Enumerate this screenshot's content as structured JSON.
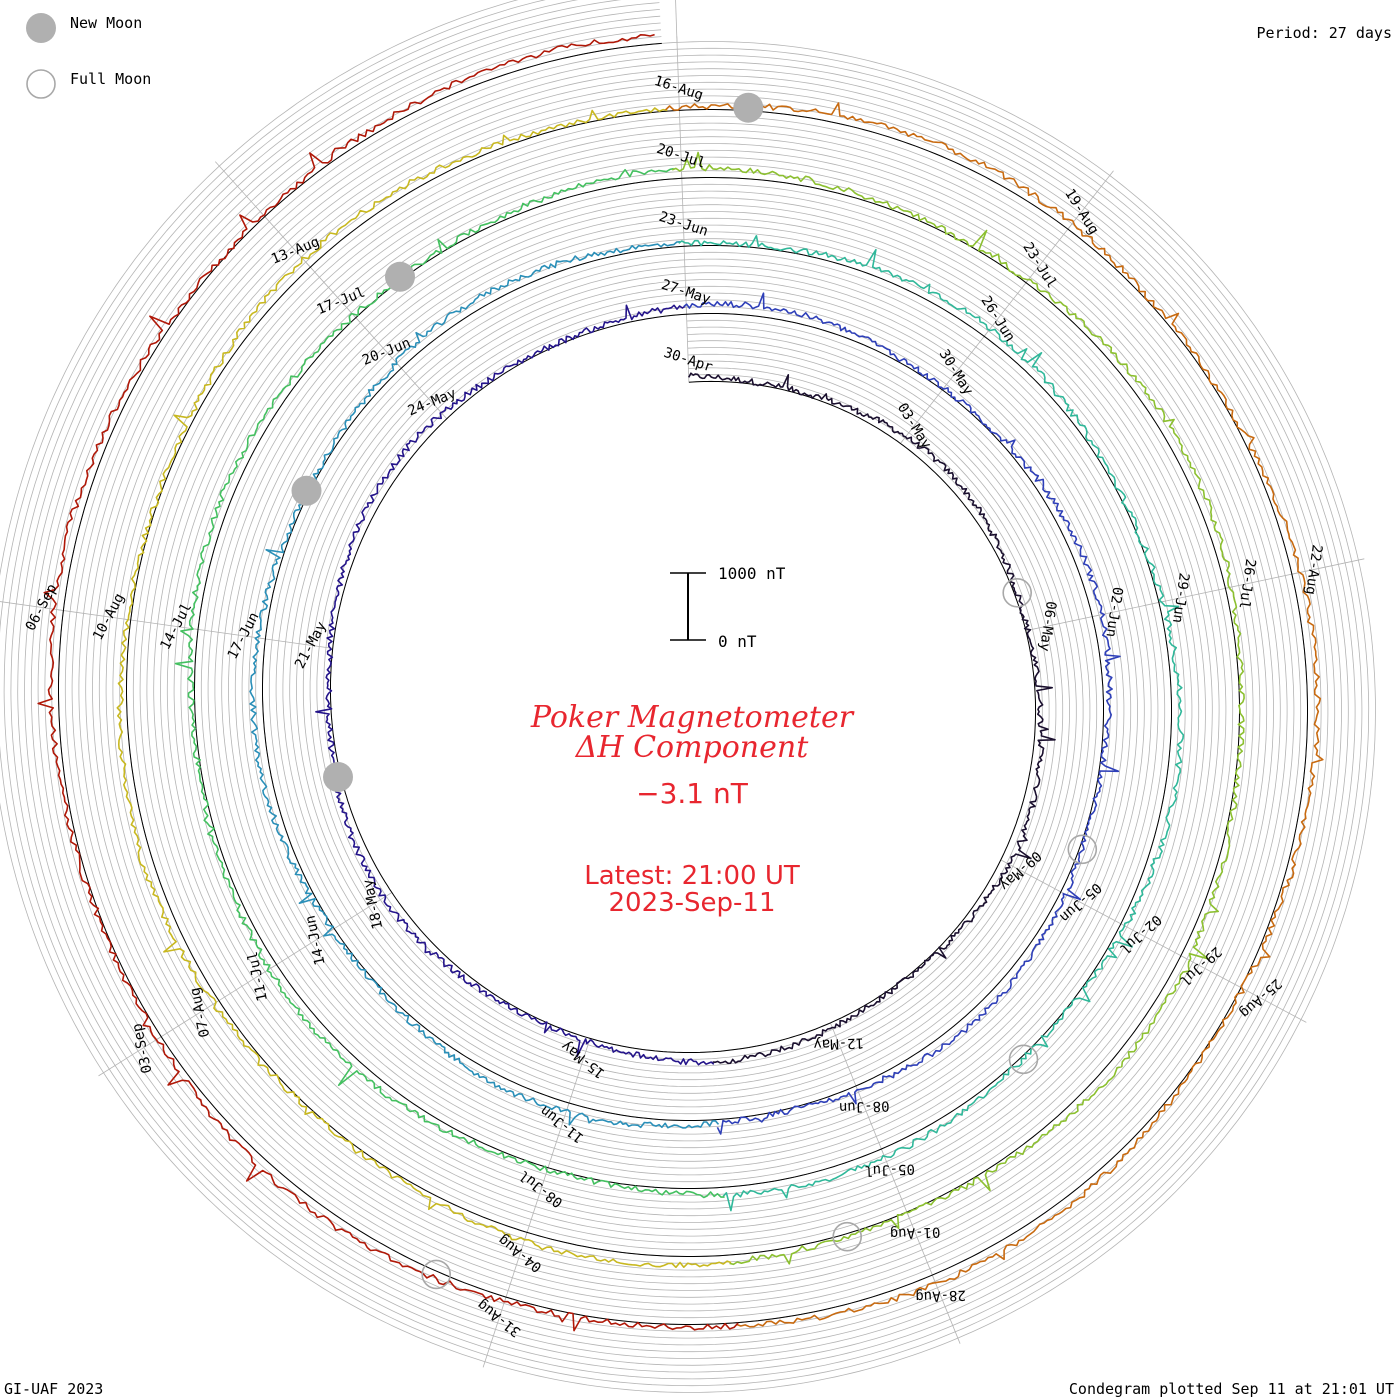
{
  "legend": {
    "new_moon_label": "New Moon",
    "full_moon_label": "Full Moon"
  },
  "period_label": "Period: 27 days",
  "footer_left": "GI-UAF 2023",
  "footer_right": "Condegram plotted Sep 11 at 21:01 UT",
  "colors": {
    "title": "#e8262f",
    "grid": "#b4b4b4",
    "moon_new": "#b0b0b0",
    "moon_full": "#a8a8a8",
    "ring_line": "#000000"
  },
  "chart_data": {
    "type": "line",
    "title_line1": "Poker Magnetometer",
    "title_line2": "ΔH Component",
    "current_value": "−3.1 nT",
    "latest_time": "Latest: 21:00 UT",
    "latest_date": "2023-Sep-11",
    "scale_top_label": "1000 nT",
    "scale_bottom_label": "0 nT",
    "period_days": 27,
    "start_date": "2023-04-30",
    "end_date": "2023-09-11",
    "series_colors": [
      "#1a0f2e",
      "#24148a",
      "#2e3fb8",
      "#2a8fb8",
      "#30b89a",
      "#44c060",
      "#8cc030",
      "#c8b820",
      "#c86a10",
      "#b01808"
    ],
    "date_labels": [
      "30-Apr",
      "03-May",
      "06-May",
      "09-May",
      "12-May",
      "15-May",
      "18-May",
      "21-May",
      "24-May",
      "27-May",
      "30-May",
      "02-Jun",
      "05-Jun",
      "08-Jun",
      "11-Jun",
      "14-Jun",
      "17-Jun",
      "20-Jun",
      "23-Jun",
      "26-Jun",
      "29-Jun",
      "02-Jul",
      "05-Jul",
      "08-Jul",
      "11-Jul",
      "14-Jul",
      "17-Jul",
      "20-Jul",
      "23-Jul",
      "26-Jul",
      "29-Jul",
      "01-Aug",
      "04-Aug",
      "07-Aug",
      "10-Aug",
      "13-Aug",
      "16-Aug",
      "19-Aug",
      "22-Aug",
      "25-Aug",
      "28-Aug",
      "31-Aug",
      "03-Sep",
      "06-Sep"
    ],
    "new_moons": [
      "2023-05-19",
      "2023-06-18",
      "2023-07-17",
      "2023-08-16"
    ],
    "full_moons": [
      "2023-05-05",
      "2023-06-04",
      "2023-07-03",
      "2023-08-01",
      "2023-08-31"
    ]
  }
}
